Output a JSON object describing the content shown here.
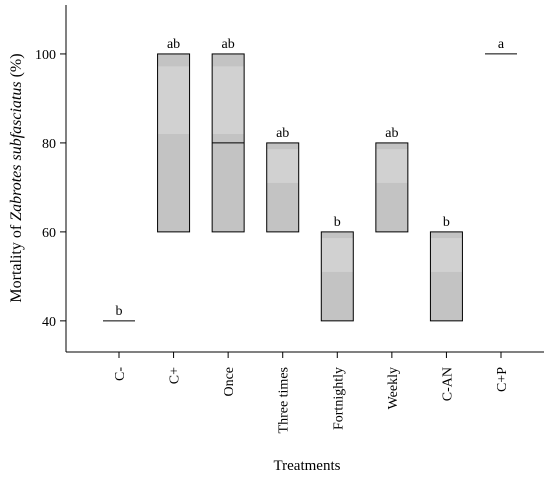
{
  "chart_data": {
    "type": "box",
    "title": "",
    "xlabel": "Treatments",
    "ylabel": {
      "prefix": "Mortality of ",
      "species": "Zabrotes subfasciatus",
      "suffix": " (%)"
    },
    "ylim": [
      33,
      111
    ],
    "yticks": [
      40,
      60,
      80,
      100
    ],
    "grid": false,
    "categories": [
      "C-",
      "C+",
      "Once",
      "Three times",
      "Fortnightly",
      "Weekly",
      "C-AN",
      "C+P"
    ],
    "boxes": [
      {
        "category": "C-",
        "q1": 40,
        "median": 40,
        "q3": 40,
        "letter": "b"
      },
      {
        "category": "C+",
        "q1": 60,
        "median": 60,
        "q3": 100,
        "letter": "ab"
      },
      {
        "category": "Once",
        "q1": 60,
        "median": 80,
        "q3": 100,
        "letter": "ab"
      },
      {
        "category": "Three times",
        "q1": 60,
        "median": 60,
        "q3": 80,
        "letter": "ab"
      },
      {
        "category": "Fortnightly",
        "q1": 40,
        "median": 40,
        "q3": 60,
        "letter": "b"
      },
      {
        "category": "Weekly",
        "q1": 60,
        "median": 60,
        "q3": 80,
        "letter": "ab"
      },
      {
        "category": "C-AN",
        "q1": 40,
        "median": 40,
        "q3": 60,
        "letter": "b"
      },
      {
        "category": "C+P",
        "q1": 100,
        "median": 100,
        "q3": 100,
        "letter": "a"
      }
    ],
    "colors": {
      "box_fill": "#c3c3c3",
      "box_highlight": "#d4d4d4",
      "stroke": "#000000"
    }
  }
}
